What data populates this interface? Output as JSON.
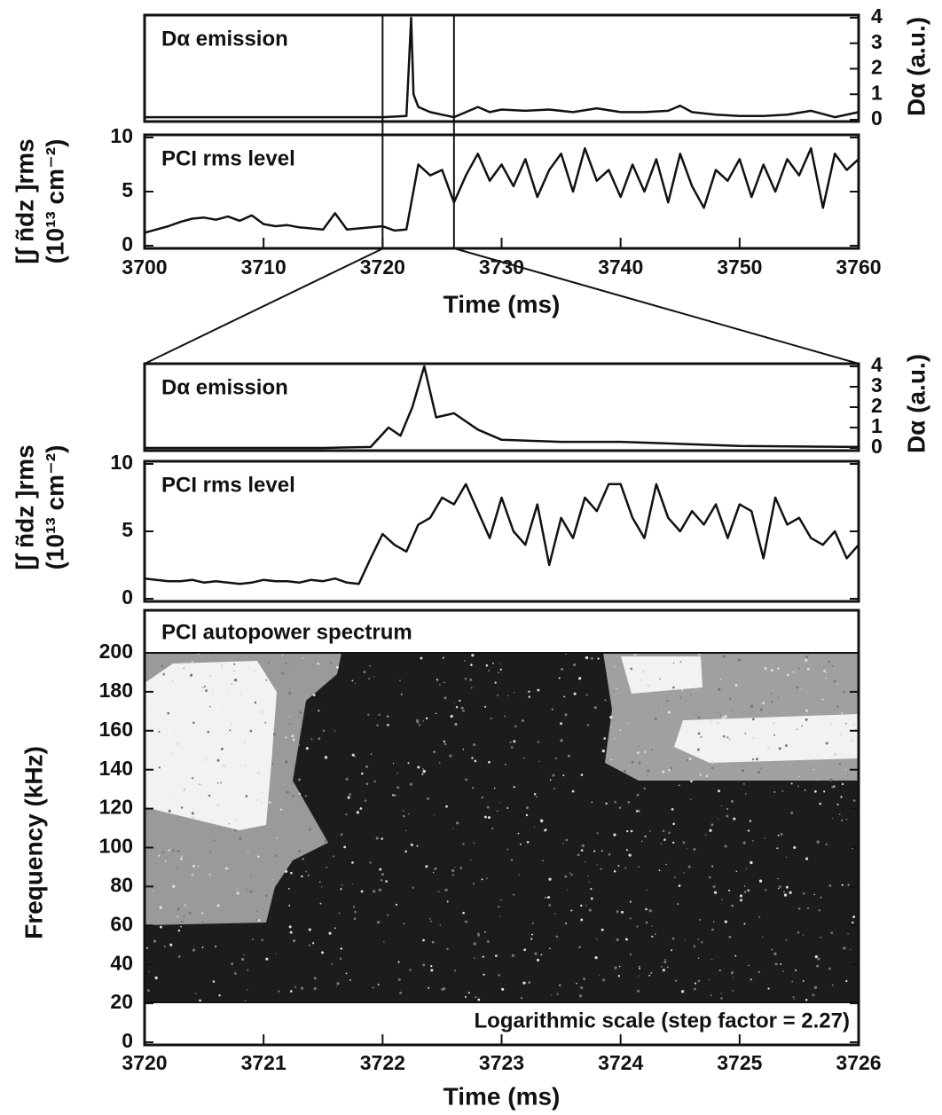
{
  "chart_data": [
    {
      "type": "line",
      "title": "Dα emission",
      "y_label": "Dα (a.u.)",
      "color": "#111",
      "xlim": [
        3700,
        3760
      ],
      "ylim": [
        0,
        4
      ],
      "yticks": [
        0,
        1,
        2,
        3,
        4
      ],
      "x": [
        3700,
        3710,
        3720,
        3722,
        3722.2,
        3722.4,
        3722.6,
        3723,
        3724,
        3725,
        3726,
        3727,
        3728,
        3729,
        3730,
        3732,
        3734,
        3736,
        3738,
        3740,
        3742,
        3744,
        3745,
        3746,
        3748,
        3750,
        3752,
        3754,
        3756,
        3758,
        3760
      ],
      "values": [
        0.1,
        0.1,
        0.1,
        0.15,
        2,
        4,
        1,
        0.5,
        0.3,
        0.2,
        0.1,
        0.3,
        0.5,
        0.3,
        0.4,
        0.35,
        0.4,
        0.3,
        0.45,
        0.3,
        0.3,
        0.35,
        0.55,
        0.3,
        0.2,
        0.15,
        0.15,
        0.2,
        0.35,
        0.1,
        0.3
      ]
    },
    {
      "type": "line",
      "title": "PCI rms level",
      "y_label": [
        "[∫ ñdz ]rms",
        "(10¹³ cm⁻²)"
      ],
      "x_label": "Time (ms)",
      "color": "#111",
      "xlim": [
        3700,
        3760
      ],
      "xticks": [
        3700,
        3710,
        3720,
        3730,
        3740,
        3750,
        3760
      ],
      "ylim": [
        0,
        10
      ],
      "yticks": [
        0,
        5,
        10
      ],
      "markers": [
        3720,
        3726
      ],
      "x": [
        3700,
        3701,
        3702,
        3703,
        3704,
        3705,
        3706,
        3707,
        3708,
        3709,
        3710,
        3711,
        3712,
        3713,
        3714,
        3715,
        3716,
        3717,
        3718,
        3719,
        3720,
        3721,
        3722,
        3723,
        3724,
        3725,
        3726,
        3727,
        3728,
        3729,
        3730,
        3731,
        3732,
        3733,
        3734,
        3735,
        3736,
        3737,
        3738,
        3739,
        3740,
        3741,
        3742,
        3743,
        3744,
        3745,
        3746,
        3747,
        3748,
        3749,
        3750,
        3751,
        3752,
        3753,
        3754,
        3755,
        3756,
        3757,
        3758,
        3759,
        3760
      ],
      "values": [
        1.2,
        1.5,
        1.8,
        2.2,
        2.5,
        2.6,
        2.4,
        2.7,
        2.3,
        2.8,
        2.0,
        1.8,
        1.9,
        1.7,
        1.6,
        1.5,
        3.0,
        1.5,
        1.6,
        1.7,
        1.8,
        1.4,
        1.5,
        7.5,
        6.5,
        7.0,
        4.0,
        6.5,
        8.5,
        6.0,
        7.5,
        5.5,
        8.0,
        4.5,
        7.0,
        8.5,
        5.0,
        9.0,
        6.0,
        7.0,
        4.5,
        7.5,
        5.0,
        8.0,
        4.0,
        8.5,
        5.5,
        3.5,
        7.0,
        6.0,
        8.0,
        4.5,
        7.5,
        5.0,
        8.0,
        6.5,
        9.0,
        3.5,
        8.5,
        7.0,
        8.0
      ]
    },
    {
      "type": "line",
      "title": "Dα emission",
      "y_label": "Dα (a.u.)",
      "color": "#111",
      "xlim": [
        3720,
        3726
      ],
      "ylim": [
        0,
        4
      ],
      "yticks": [
        0,
        1,
        2,
        3,
        4
      ],
      "x": [
        3720,
        3721,
        3721.5,
        3721.9,
        3722.05,
        3722.15,
        3722.25,
        3722.35,
        3722.45,
        3722.6,
        3722.8,
        3723,
        3723.5,
        3724,
        3725,
        3726
      ],
      "values": [
        0,
        0,
        0,
        0.05,
        1,
        0.6,
        2,
        4,
        1.5,
        1.7,
        0.9,
        0.4,
        0.3,
        0.3,
        0.1,
        0.05
      ]
    },
    {
      "type": "line",
      "title": "PCI rms level",
      "y_label": [
        "[∫ ñdz ]rms",
        "(10¹³ cm⁻²)"
      ],
      "color": "#111",
      "xlim": [
        3720,
        3726
      ],
      "ylim": [
        0,
        10
      ],
      "yticks": [
        0,
        5,
        10
      ],
      "x": [
        3720,
        3720.1,
        3720.2,
        3720.3,
        3720.4,
        3720.5,
        3720.6,
        3720.7,
        3720.8,
        3720.9,
        3721,
        3721.1,
        3721.2,
        3721.3,
        3721.4,
        3721.5,
        3721.6,
        3721.7,
        3721.8,
        3721.9,
        3722,
        3722.1,
        3722.2,
        3722.3,
        3722.4,
        3722.5,
        3722.6,
        3722.7,
        3722.8,
        3722.9,
        3723,
        3723.1,
        3723.2,
        3723.3,
        3723.4,
        3723.5,
        3723.6,
        3723.7,
        3723.8,
        3723.9,
        3724,
        3724.1,
        3724.2,
        3724.3,
        3724.4,
        3724.5,
        3724.6,
        3724.7,
        3724.8,
        3724.9,
        3725,
        3725.1,
        3725.2,
        3725.3,
        3725.4,
        3725.5,
        3725.6,
        3725.7,
        3725.8,
        3725.9,
        3726
      ],
      "values": [
        1.5,
        1.4,
        1.3,
        1.3,
        1.4,
        1.2,
        1.3,
        1.2,
        1.1,
        1.2,
        1.4,
        1.3,
        1.3,
        1.2,
        1.4,
        1.3,
        1.5,
        1.2,
        1.1,
        3.0,
        4.8,
        4.0,
        3.5,
        5.5,
        6.0,
        7.5,
        7.0,
        8.5,
        6.5,
        4.5,
        7.5,
        5.0,
        4.0,
        7.0,
        2.5,
        6.0,
        4.5,
        7.5,
        6.5,
        8.5,
        8.5,
        6.0,
        4.5,
        8.5,
        6.0,
        5.0,
        6.5,
        5.5,
        7.0,
        4.5,
        7.0,
        6.5,
        3.0,
        7.5,
        5.5,
        6.0,
        4.5,
        4.0,
        5.0,
        3.0,
        4.0
      ]
    },
    {
      "type": "heatmap",
      "title": "PCI autopower spectrum",
      "y_label": "Frequency (kHz)",
      "x_label": "Time (ms)",
      "annotation": "Logarithmic scale (step factor = 2.27)",
      "xlim": [
        3720,
        3726
      ],
      "xticks": [
        3720,
        3721,
        3722,
        3723,
        3724,
        3725,
        3726
      ],
      "ylim": [
        0,
        200
      ],
      "yticks": [
        0,
        20,
        40,
        60,
        80,
        100,
        120,
        140,
        160,
        180,
        200
      ]
    }
  ]
}
